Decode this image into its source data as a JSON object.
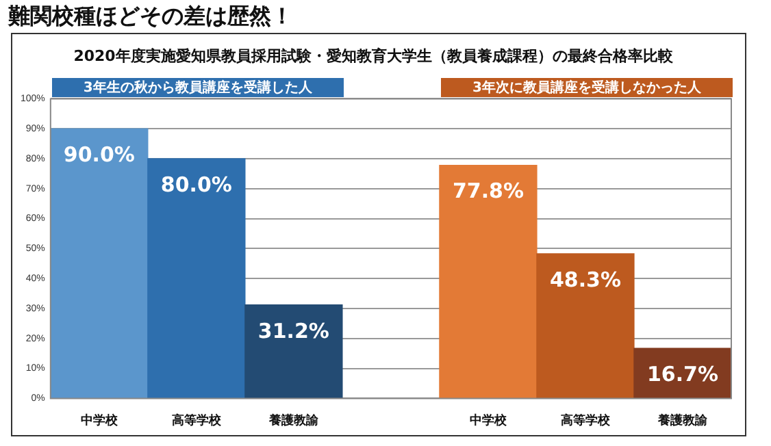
{
  "chart_data": {
    "type": "bar",
    "title": "難関校種ほどその差は歴然！",
    "subtitle": "2020年度実施愛知県教員採用試験・愛知教育大学生（教員養成課程）の最終合格率比較",
    "categories": [
      "中学校",
      "高等学校",
      "養護教諭",
      null,
      "中学校",
      "高等学校",
      "養護教諭"
    ],
    "values": [
      90.0,
      80.0,
      31.2,
      null,
      77.8,
      48.3,
      16.7
    ],
    "colors": [
      "#5b96cc",
      "#2e6fae",
      "#234b73",
      "#ffffff",
      "#e37a36",
      "#bd5a1f",
      "#823b20"
    ],
    "value_labels": [
      "90.0%",
      "80.0%",
      "31.2%",
      null,
      "77.8%",
      "48.3%",
      "16.7%"
    ],
    "annotations": [
      "3年生の秋から教員講座を受講した人",
      "3年次に教員講座を受講しなかった人"
    ],
    "ylim": [
      0,
      100
    ],
    "yticks": [
      {
        "value": 0,
        "label": "0%"
      },
      {
        "value": 10,
        "label": "10%"
      },
      {
        "value": 20,
        "label": "20%"
      },
      {
        "value": 30,
        "label": "30%"
      },
      {
        "value": 40,
        "label": "40%"
      },
      {
        "value": 50,
        "label": "50%"
      },
      {
        "value": 60,
        "label": "60%"
      },
      {
        "value": 70,
        "label": "70%"
      },
      {
        "value": 80,
        "label": "80%"
      },
      {
        "value": 90,
        "label": "90%"
      },
      {
        "value": 100,
        "label": "100%"
      }
    ],
    "grid": "y",
    "legend": false
  }
}
